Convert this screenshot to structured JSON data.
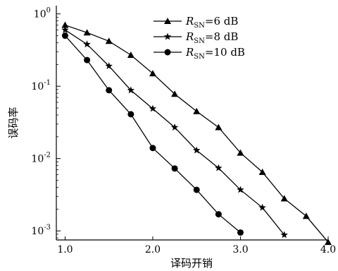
{
  "chart_data": {
    "type": "line",
    "title": "",
    "xlabel": "译码开销",
    "ylabel": "误码率",
    "xlim": [
      0.9,
      4.0
    ],
    "ylim": [
      0.00075,
      1.3
    ],
    "yscale": "log",
    "grid": false,
    "legend_position": "top-right",
    "x_ticks": [
      {
        "value": 1.0,
        "label": "1.0"
      },
      {
        "value": 2.0,
        "label": "2.0"
      },
      {
        "value": 3.0,
        "label": "3.0"
      },
      {
        "value": 4.0,
        "label": "4.0"
      }
    ],
    "y_ticks": [
      {
        "value": 1,
        "base": "10",
        "exp": "0"
      },
      {
        "value": 0.1,
        "base": "10",
        "exp": "-1"
      },
      {
        "value": 0.01,
        "base": "10",
        "exp": "-2"
      },
      {
        "value": 0.001,
        "base": "10",
        "exp": "-3"
      }
    ],
    "series": [
      {
        "name": "R_SN=6 dB",
        "label_main": "R",
        "label_sub": "SN",
        "label_rest": "=6 dB",
        "marker": "triangle",
        "x": [
          1.0,
          1.25,
          1.5,
          1.75,
          2.0,
          2.25,
          2.5,
          2.75,
          3.0,
          3.25,
          3.5,
          3.75,
          4.0
        ],
        "y": [
          0.7,
          0.55,
          0.42,
          0.27,
          0.15,
          0.078,
          0.045,
          0.027,
          0.012,
          0.0065,
          0.0028,
          0.0016,
          0.0007
        ]
      },
      {
        "name": "R_SN=8 dB",
        "label_main": "R",
        "label_sub": "SN",
        "label_rest": "=8 dB",
        "marker": "star",
        "x": [
          1.0,
          1.25,
          1.5,
          1.75,
          2.0,
          2.25,
          2.5,
          2.75,
          3.0,
          3.25,
          3.5
        ],
        "y": [
          0.6,
          0.38,
          0.19,
          0.088,
          0.049,
          0.027,
          0.013,
          0.0074,
          0.0037,
          0.0021,
          0.00088
        ]
      },
      {
        "name": "R_SN=10 dB",
        "label_main": "R",
        "label_sub": "SN",
        "label_rest": "=10 dB",
        "marker": "circle",
        "x": [
          1.0,
          1.25,
          1.5,
          1.75,
          2.0,
          2.25,
          2.5,
          2.75,
          3.0
        ],
        "y": [
          0.5,
          0.23,
          0.088,
          0.041,
          0.014,
          0.0073,
          0.0037,
          0.0017,
          0.00095
        ]
      }
    ],
    "colors": {
      "line": "#000000",
      "marker": "#000000"
    }
  }
}
